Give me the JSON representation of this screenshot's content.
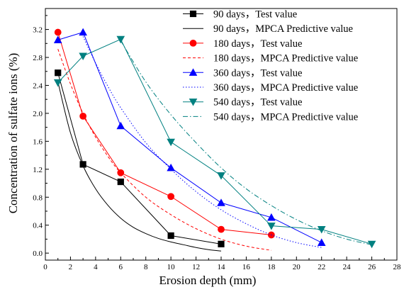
{
  "chart_data": {
    "type": "line",
    "xlabel": "Erosion depth (mm)",
    "ylabel": "Concentration of sulfate ions (%)",
    "xlim": [
      0,
      28
    ],
    "ylim": [
      -0.1,
      3.5
    ],
    "xticks": [
      0,
      2,
      4,
      6,
      8,
      10,
      12,
      14,
      16,
      18,
      20,
      22,
      24,
      26,
      28
    ],
    "xtick_labels": [
      "0",
      "2",
      "4",
      "6",
      "8",
      "10",
      "12",
      "14",
      "16",
      "18",
      "20",
      "22",
      "24",
      "26",
      "28"
    ],
    "yticks": [
      0.0,
      0.4,
      0.8,
      1.2,
      1.6,
      2.0,
      2.4,
      2.8,
      3.2
    ],
    "ytick_labels": [
      "0.0",
      "0.4",
      "0.8",
      "1.2",
      "1.6",
      "2.0",
      "2.4",
      "2.8",
      "3.2"
    ],
    "grid": false,
    "legend_position": "top-right, outside plot area",
    "series": [
      {
        "name": "90 days，Test value",
        "kind": "test",
        "color": "#000000",
        "marker": "square",
        "x": [
          1,
          3,
          6,
          10,
          14
        ],
        "y": [
          2.58,
          1.27,
          1.02,
          0.25,
          0.13
        ]
      },
      {
        "name": "90 days，MPCA Predictive value",
        "kind": "predicted",
        "color": "#000000",
        "dash": "solid",
        "x": [
          1,
          2,
          3,
          4,
          5,
          6,
          7,
          8,
          9,
          10,
          11,
          12,
          13,
          14
        ],
        "y": [
          2.45,
          1.72,
          1.25,
          0.92,
          0.68,
          0.5,
          0.37,
          0.28,
          0.21,
          0.16,
          0.12,
          0.08,
          0.05,
          0.03
        ]
      },
      {
        "name": "180 days，Test value",
        "kind": "test",
        "color": "#ff0000",
        "marker": "circle",
        "x": [
          1,
          3,
          6,
          10,
          14,
          18
        ],
        "y": [
          3.16,
          1.96,
          1.15,
          0.81,
          0.34,
          0.26
        ]
      },
      {
        "name": "180 days，MPCA Predictive value",
        "kind": "predicted",
        "color": "#ff0000",
        "dash": "dash",
        "x": [
          1,
          2,
          3,
          4,
          5,
          6,
          8,
          10,
          12,
          14,
          16,
          18
        ],
        "y": [
          2.92,
          2.42,
          2.0,
          1.66,
          1.38,
          1.15,
          0.8,
          0.55,
          0.35,
          0.2,
          0.1,
          0.04
        ]
      },
      {
        "name": "360 days，Test value",
        "kind": "test",
        "color": "#0000ff",
        "marker": "triangle-up",
        "x": [
          1,
          3,
          6,
          10,
          14,
          18,
          22
        ],
        "y": [
          3.05,
          3.16,
          1.82,
          1.22,
          0.72,
          0.51,
          0.15
        ]
      },
      {
        "name": "360 days，MPCA Predictive value",
        "kind": "predicted",
        "color": "#0000ff",
        "dash": "dot",
        "x": [
          3,
          4,
          5,
          6,
          8,
          10,
          12,
          14,
          16,
          18,
          20,
          22
        ],
        "y": [
          3.1,
          2.72,
          2.38,
          2.08,
          1.58,
          1.2,
          0.88,
          0.62,
          0.42,
          0.26,
          0.15,
          0.08
        ]
      },
      {
        "name": "540 days，Test value",
        "kind": "test",
        "color": "#008080",
        "marker": "triangle-down",
        "x": [
          1,
          3,
          6,
          10,
          14,
          18,
          22,
          26
        ],
        "y": [
          2.44,
          2.82,
          3.06,
          1.59,
          1.11,
          0.39,
          0.34,
          0.13
        ]
      },
      {
        "name": "540 days，MPCA Predictive value",
        "kind": "predicted",
        "color": "#008080",
        "dash": "dashdot",
        "x": [
          6,
          8,
          10,
          12,
          14,
          16,
          18,
          20,
          22,
          24,
          26
        ],
        "y": [
          3.04,
          2.45,
          1.98,
          1.58,
          1.22,
          0.92,
          0.68,
          0.48,
          0.32,
          0.2,
          0.12
        ]
      }
    ]
  }
}
